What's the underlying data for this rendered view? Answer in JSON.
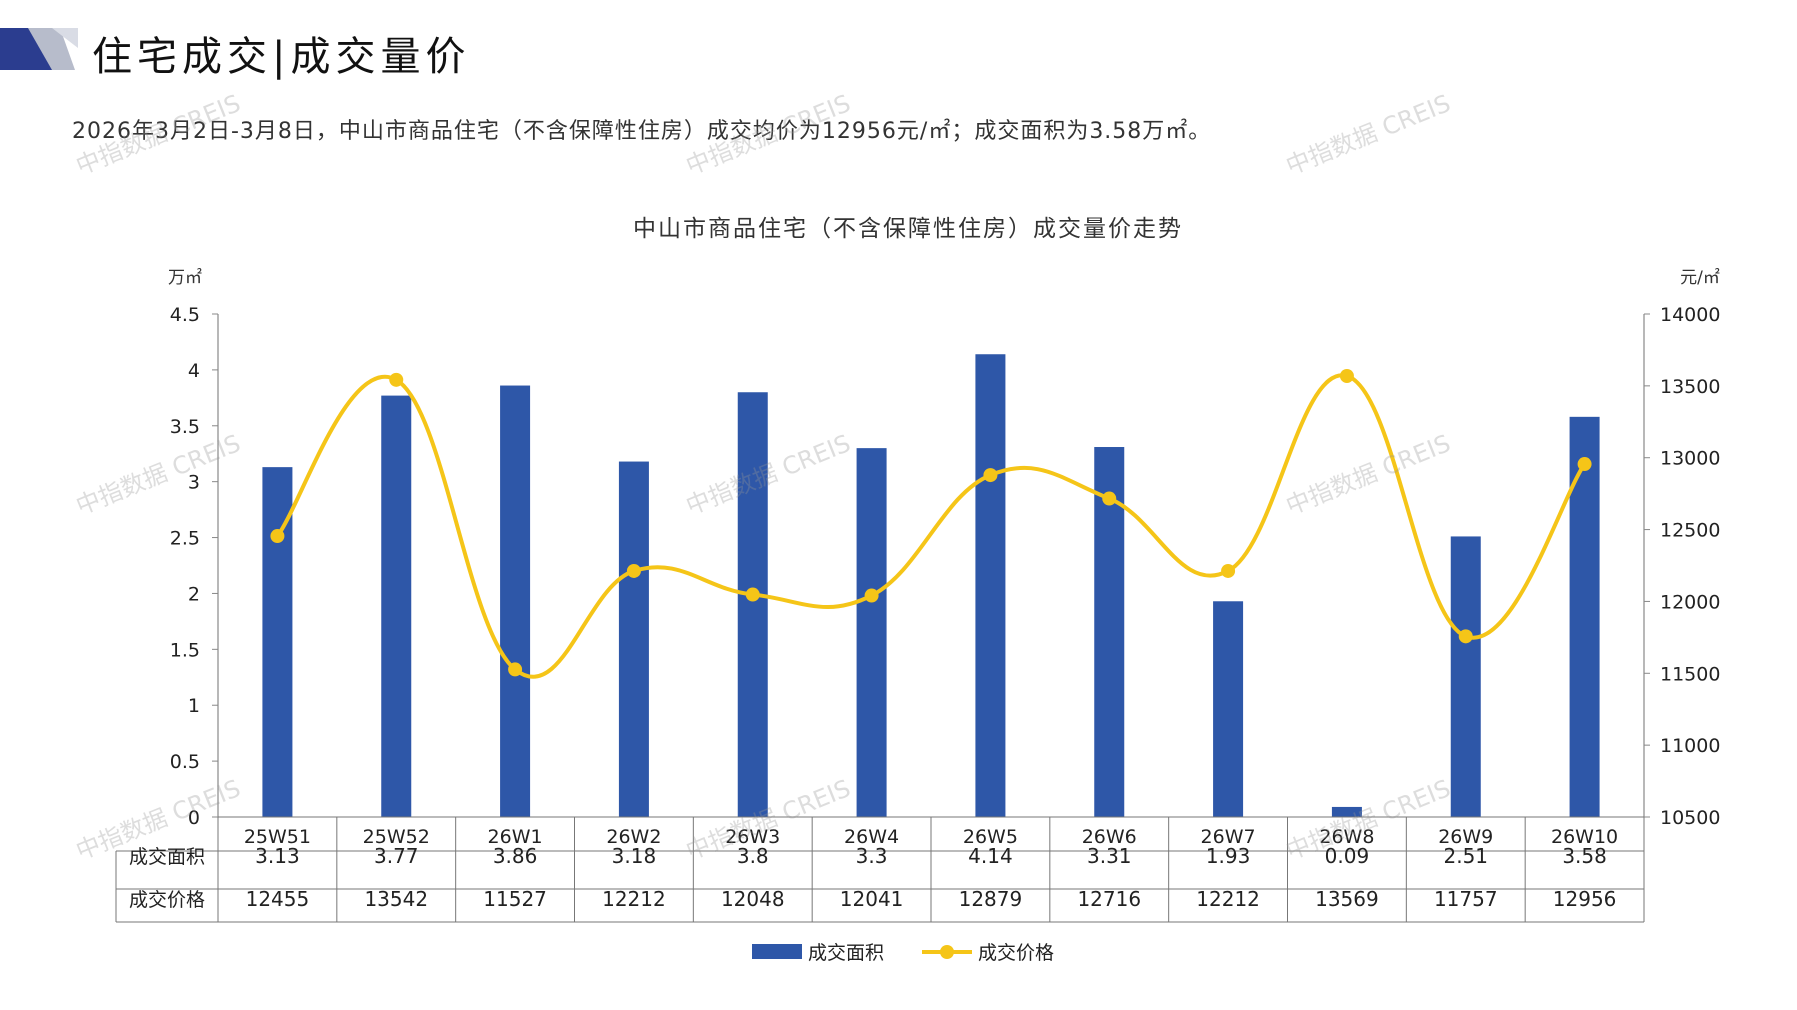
{
  "header": {
    "title": "住宅成交|成交量价",
    "summary": "2026年3月2日-3月8日，中山市商品住宅（不含保障性住房）成交均价为12956元/㎡；成交面积为3.58万㎡。"
  },
  "watermark_text": "中指数据 CREIS",
  "colors": {
    "bar": "#2E57A8",
    "line": "#F5C518",
    "deco_dark": "#2B3D8F",
    "deco_light": "#B7BCCB"
  },
  "chart_data": {
    "type": "bar+line",
    "title": "中山市商品住宅（不含保障性住房）成交量价走势",
    "categories": [
      "25W51",
      "25W52",
      "26W1",
      "26W2",
      "26W3",
      "26W4",
      "26W5",
      "26W6",
      "26W7",
      "26W8",
      "26W9",
      "26W10"
    ],
    "series": [
      {
        "name": "成交面积",
        "type": "bar",
        "axis": "left",
        "values": [
          3.13,
          3.77,
          3.86,
          3.18,
          3.8,
          3.3,
          4.14,
          3.31,
          1.93,
          0.09,
          2.51,
          3.58
        ]
      },
      {
        "name": "成交价格",
        "type": "line",
        "axis": "right",
        "values": [
          12455,
          13542,
          11527,
          12212,
          12048,
          12041,
          12879,
          12716,
          12212,
          13569,
          11757,
          12956
        ]
      }
    ],
    "y_left": {
      "unit": "万㎡",
      "ylim": [
        0,
        4.5
      ],
      "ticks": [
        "0",
        "0.5",
        "1",
        "1.5",
        "2",
        "2.5",
        "3",
        "3.5",
        "4",
        "4.5"
      ]
    },
    "y_right": {
      "unit": "元/㎡",
      "ylim": [
        10500,
        14000
      ],
      "ticks": [
        "10500",
        "11000",
        "11500",
        "12000",
        "12500",
        "13000",
        "13500",
        "14000"
      ]
    },
    "table_row_labels": [
      "成交面积",
      "成交价格"
    ],
    "table_values": {
      "area": [
        "3.13",
        "3.77",
        "3.86",
        "3.18",
        "3.8",
        "3.3",
        "4.14",
        "3.31",
        "1.93",
        "0.09",
        "2.51",
        "3.58"
      ],
      "price": [
        "12455",
        "13542",
        "11527",
        "12212",
        "12048",
        "12041",
        "12879",
        "12716",
        "12212",
        "13569",
        "11757",
        "12956"
      ]
    },
    "legend": [
      "成交面积",
      "成交价格"
    ],
    "legend_position": "bottom",
    "grid": false
  }
}
